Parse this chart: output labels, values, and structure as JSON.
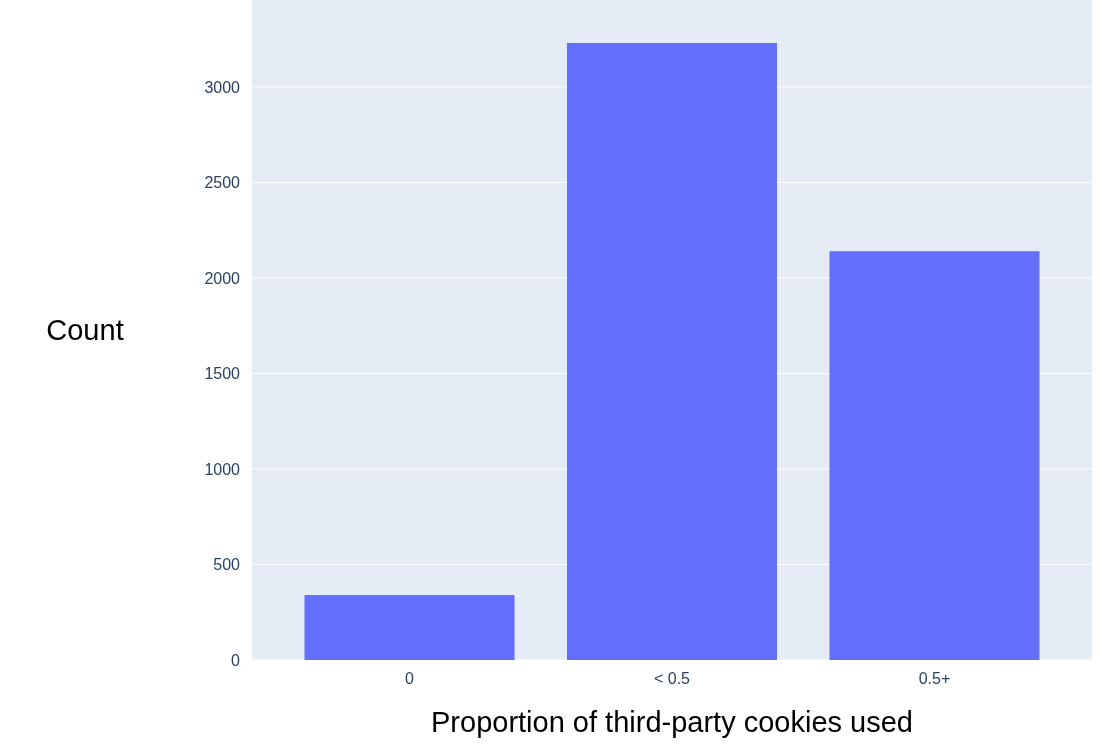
{
  "chart_data": {
    "type": "bar",
    "xlabel": "Proportion of third-party cookies used",
    "ylabel": "Count",
    "categories": [
      "0",
      "< 0.5",
      "0.5+"
    ],
    "values": [
      340,
      3230,
      2140
    ],
    "color": "#636efa",
    "ylim": [
      0,
      3455
    ],
    "yticks": [
      0,
      500,
      1000,
      1500,
      2000,
      2500,
      3000
    ],
    "grid": "y"
  }
}
